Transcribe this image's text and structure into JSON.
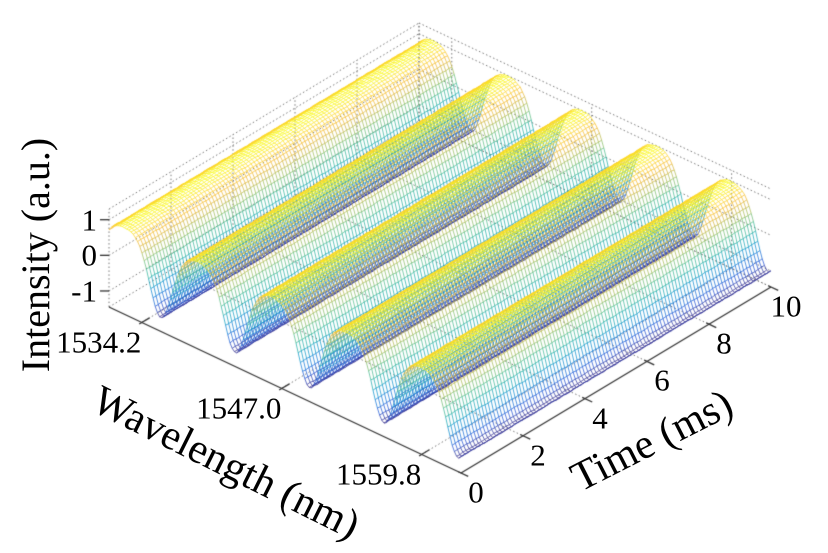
{
  "figure": {
    "background": "#ffffff",
    "description": "MATLAB-style 3D wireframe mesh plot of spectral interference fringes: flat-topped intensity plateaus with narrow periodic dips along wavelength, constant along time"
  },
  "chart_data": {
    "type": "surface",
    "title": "",
    "legend": null,
    "grid": {
      "style": "dotted",
      "color": "#777777"
    },
    "intensity": {
      "label": "Intensity (a.u.)",
      "ticks": [
        1,
        0,
        -1
      ],
      "limits": [
        -1.45,
        1.3
      ],
      "data_min": -1.06,
      "data_max": 1.0
    },
    "wavelength": {
      "label": "Wavelength (nm)",
      "ticks": [
        1534.2,
        1547.0,
        1559.8
      ],
      "tick_decimals": 1,
      "range": [
        1531.2,
        1563.4
      ]
    },
    "time": {
      "label": "Time (ms)",
      "ticks": [
        0,
        2,
        4,
        6,
        8,
        10
      ],
      "range": [
        0,
        10
      ]
    },
    "surface_model": {
      "description": "z(wavelength,time) = plateau - dip_depth * exp(-(d/sigma)^2), d = distance to nearest valley center; independent of time",
      "plateau_level": 1.0,
      "valley_level": -1.06,
      "dip_depth": 2.06,
      "dip_sigma_nm": 1.45,
      "period_nm": 6.8,
      "first_valley_offset_nm": 4.75,
      "valley_centers_nm": [
        1535.95,
        1542.75,
        1549.55,
        1556.35,
        1563.15
      ],
      "noise_amplitude": 0.025
    },
    "mesh": {
      "n_wavelength": 160,
      "n_time": 100
    },
    "colormap": {
      "name": "parula",
      "stops": [
        [
          0.0,
          "#352a87"
        ],
        [
          0.1,
          "#2053d4"
        ],
        [
          0.22,
          "#1178d8"
        ],
        [
          0.34,
          "#0a97c9"
        ],
        [
          0.46,
          "#21afa7"
        ],
        [
          0.58,
          "#52bd8c"
        ],
        [
          0.7,
          "#98be5f"
        ],
        [
          0.8,
          "#d1b642"
        ],
        [
          0.88,
          "#f7b92e"
        ],
        [
          0.95,
          "#fdd627"
        ],
        [
          1.0,
          "#f8fb12"
        ]
      ]
    },
    "axis_color": "#333333",
    "text_color": "#000000"
  }
}
